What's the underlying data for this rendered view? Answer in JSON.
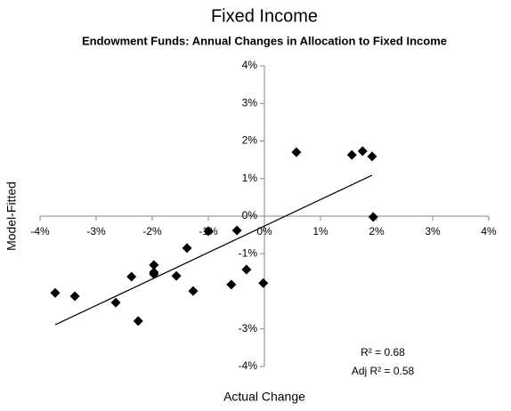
{
  "chart_data": {
    "type": "scatter",
    "title": "Fixed Income",
    "subtitle": "Endowment Funds: Annual Changes in Allocation to Fixed Income",
    "x_label": "Actual Change",
    "y_label": "Model-Fitted",
    "series": [
      {
        "name": "Funds",
        "color": "#000000",
        "x": [
          -3.73,
          -3.38,
          -2.65,
          -2.37,
          -2.25,
          -1.97,
          -1.97,
          -1.97,
          -1.57,
          -1.38,
          -1.27,
          -1.0,
          -0.59,
          -0.49,
          -0.32,
          -0.02,
          0.57,
          1.56,
          1.75,
          1.92,
          1.94
        ],
        "values": [
          -2.04,
          -2.13,
          -2.3,
          -1.61,
          -2.79,
          -1.3,
          -1.49,
          -1.54,
          -1.59,
          -0.85,
          -1.99,
          -0.4,
          -1.82,
          -0.38,
          -1.42,
          -1.78,
          1.7,
          1.63,
          1.73,
          1.59,
          -0.02
        ]
      }
    ],
    "trendline": {
      "color": "#000000",
      "x": [
        -3.73,
        1.92
      ],
      "values": [
        -2.89,
        1.09
      ]
    },
    "annotations": [
      "R² = 0.68",
      "Adj R² = 0.58"
    ],
    "xlim": [
      -4,
      4
    ],
    "ylim": [
      -4,
      4
    ],
    "xticks": [
      {
        "value": -4,
        "label": "-4%"
      },
      {
        "value": -3,
        "label": "-3%"
      },
      {
        "value": -2,
        "label": "-2%"
      },
      {
        "value": -1,
        "label": "-1%"
      },
      {
        "value": 0,
        "label": "0%"
      },
      {
        "value": 1,
        "label": "1%"
      },
      {
        "value": 2,
        "label": "2%"
      },
      {
        "value": 3,
        "label": "3%"
      },
      {
        "value": 4,
        "label": "4%"
      }
    ],
    "yticks": [
      {
        "value": -4,
        "label": "-4%"
      },
      {
        "value": -3,
        "label": "-3%"
      },
      {
        "value": -1,
        "label": "-1%"
      },
      {
        "value": 0,
        "label": "0%"
      },
      {
        "value": 1,
        "label": "1%"
      },
      {
        "value": 2,
        "label": "2%"
      },
      {
        "value": 3,
        "label": "3%"
      },
      {
        "value": 4,
        "label": "4%"
      }
    ],
    "grid": false
  }
}
